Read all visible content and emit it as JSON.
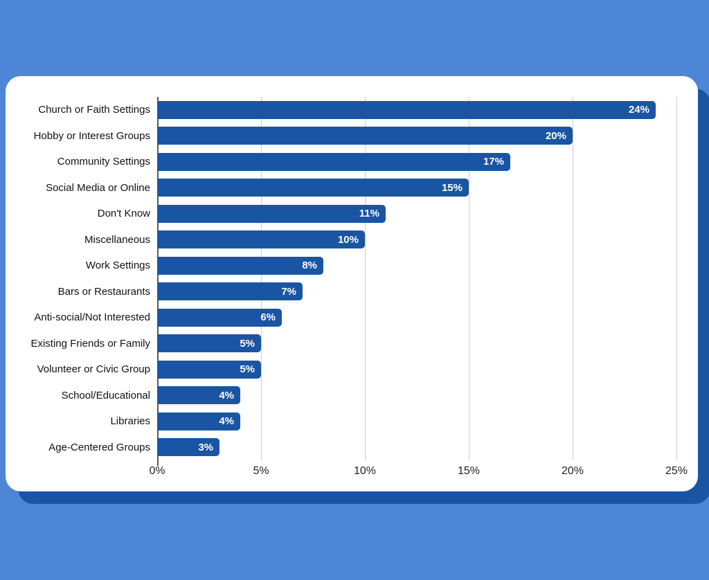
{
  "page": {
    "background_color": "#4d86d6"
  },
  "card": {
    "background_color": "#ffffff",
    "shadow_color": "#1a55a4"
  },
  "chart_data": {
    "type": "bar",
    "orientation": "horizontal",
    "title": "",
    "xlabel": "",
    "ylabel": "",
    "categories": [
      "Church or Faith Settings",
      "Hobby or Interest Groups",
      "Community Settings",
      "Social Media or Online",
      "Don't Know",
      "Miscellaneous",
      "Work Settings",
      "Bars or Restaurants",
      "Anti-social/Not Interested",
      "Existing Friends or Family",
      "Volunteer or Civic Group",
      "School/Educational",
      "Libraries",
      "Age-Centered Groups"
    ],
    "values": [
      24,
      20,
      17,
      15,
      11,
      10,
      8,
      7,
      6,
      5,
      5,
      4,
      4,
      3
    ],
    "value_labels": [
      "24%",
      "20%",
      "17%",
      "15%",
      "11%",
      "10%",
      "8%",
      "7%",
      "6%",
      "5%",
      "5%",
      "4%",
      "4%",
      "3%"
    ],
    "xlim": [
      0,
      25
    ],
    "x_ticks": [
      "0%",
      "5%",
      "10%",
      "15%",
      "20%",
      "25%"
    ],
    "x_tick_values": [
      0,
      5,
      10,
      15,
      20,
      25
    ],
    "grid": "vertical",
    "legend": "none",
    "bar_color": "#1a55a4",
    "value_label_color": "#ffffff",
    "gridline_color": "#cccccc",
    "axis_line_color": "#595959"
  }
}
